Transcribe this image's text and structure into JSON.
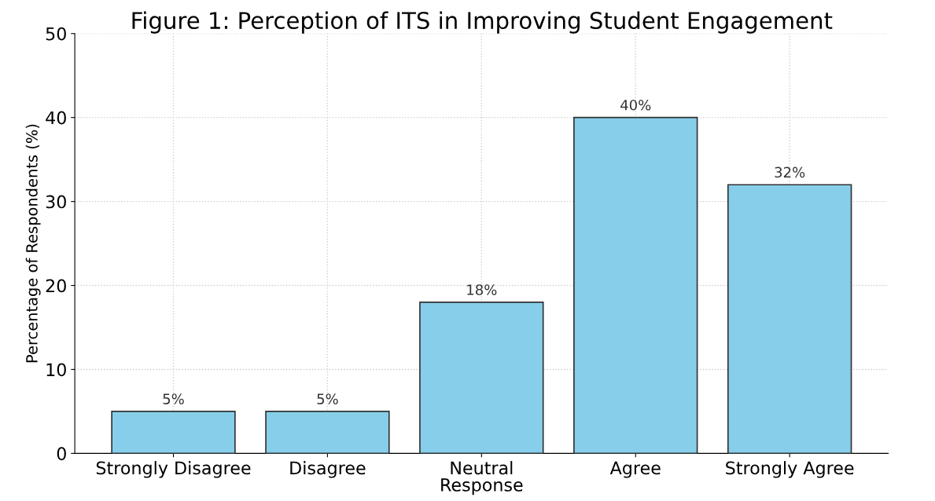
{
  "chart_data": {
    "type": "bar",
    "title": "Figure 1: Perception of ITS in Improving Student Engagement",
    "xlabel": "Response",
    "ylabel": "Percentage of Respondents (%)",
    "categories": [
      "Strongly Disagree",
      "Disagree",
      "Neutral",
      "Agree",
      "Strongly Agree"
    ],
    "values": [
      5,
      5,
      18,
      40,
      32
    ],
    "value_labels": [
      "5%",
      "5%",
      "18%",
      "40%",
      "32%"
    ],
    "color": "#87ceeb",
    "ylim": [
      0,
      50
    ],
    "yticks": [
      0,
      10,
      20,
      30,
      40,
      50
    ],
    "grid": true
  }
}
